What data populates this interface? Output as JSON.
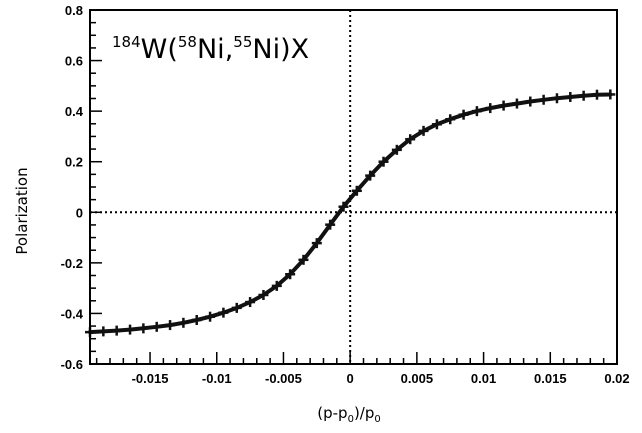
{
  "chart_data": {
    "type": "line",
    "title": "",
    "annotation": {
      "target_mass": "184",
      "target": "W",
      "open": "(",
      "projectile_mass": "58",
      "projectile": "Ni",
      "sep": ",",
      "fragment_mass": "55",
      "fragment": "Ni",
      "close": ")X"
    },
    "xlabel": {
      "open": "(p-p",
      "sub1": "0",
      "mid": ")/p",
      "sub2": "0"
    },
    "ylabel": "Polarization",
    "xlim": [
      -0.0195,
      0.02
    ],
    "ylim": [
      -0.6,
      0.8
    ],
    "x_ticks": [
      -0.015,
      -0.01,
      -0.005,
      0,
      0.005,
      0.01,
      0.015,
      0.02
    ],
    "x_tick_labels": [
      "-0.015",
      "-0.01",
      "-0.005",
      "0",
      "0.005",
      "0.01",
      "0.015",
      "0.02"
    ],
    "y_ticks": [
      -0.6,
      -0.4,
      -0.2,
      0,
      0.2,
      0.4,
      0.6,
      0.8
    ],
    "y_tick_labels": [
      "-0.6",
      "-0.4",
      "-0.2",
      "0",
      "0.2",
      "0.4",
      "0.6",
      "0.8"
    ],
    "grid": false,
    "reference_lines": {
      "x": 0,
      "y": 0,
      "style": "dotted"
    },
    "series": [
      {
        "x": [
          -0.0195,
          -0.0185,
          -0.0175,
          -0.0165,
          -0.0155,
          -0.0145,
          -0.0135,
          -0.0125,
          -0.0115,
          -0.0105,
          -0.0095,
          -0.0085,
          -0.0075,
          -0.0065,
          -0.0055,
          -0.0045,
          -0.0035,
          -0.0025,
          -0.0015,
          -0.0005,
          0.0005,
          0.0015,
          0.0025,
          0.0035,
          0.0045,
          0.0055,
          0.0065,
          0.0075,
          0.0085,
          0.0095,
          0.0105,
          0.0115,
          0.0125,
          0.0135,
          0.0145,
          0.0155,
          0.0165,
          0.0175,
          0.0185,
          0.0195
        ],
        "y": [
          -0.474,
          -0.471,
          -0.468,
          -0.464,
          -0.459,
          -0.453,
          -0.446,
          -0.437,
          -0.426,
          -0.413,
          -0.397,
          -0.378,
          -0.355,
          -0.327,
          -0.291,
          -0.245,
          -0.188,
          -0.122,
          -0.049,
          0.022,
          0.085,
          0.145,
          0.2,
          0.247,
          0.289,
          0.322,
          0.348,
          0.368,
          0.386,
          0.4,
          0.412,
          0.422,
          0.43,
          0.438,
          0.445,
          0.451,
          0.456,
          0.461,
          0.465,
          0.466
        ]
      }
    ]
  }
}
